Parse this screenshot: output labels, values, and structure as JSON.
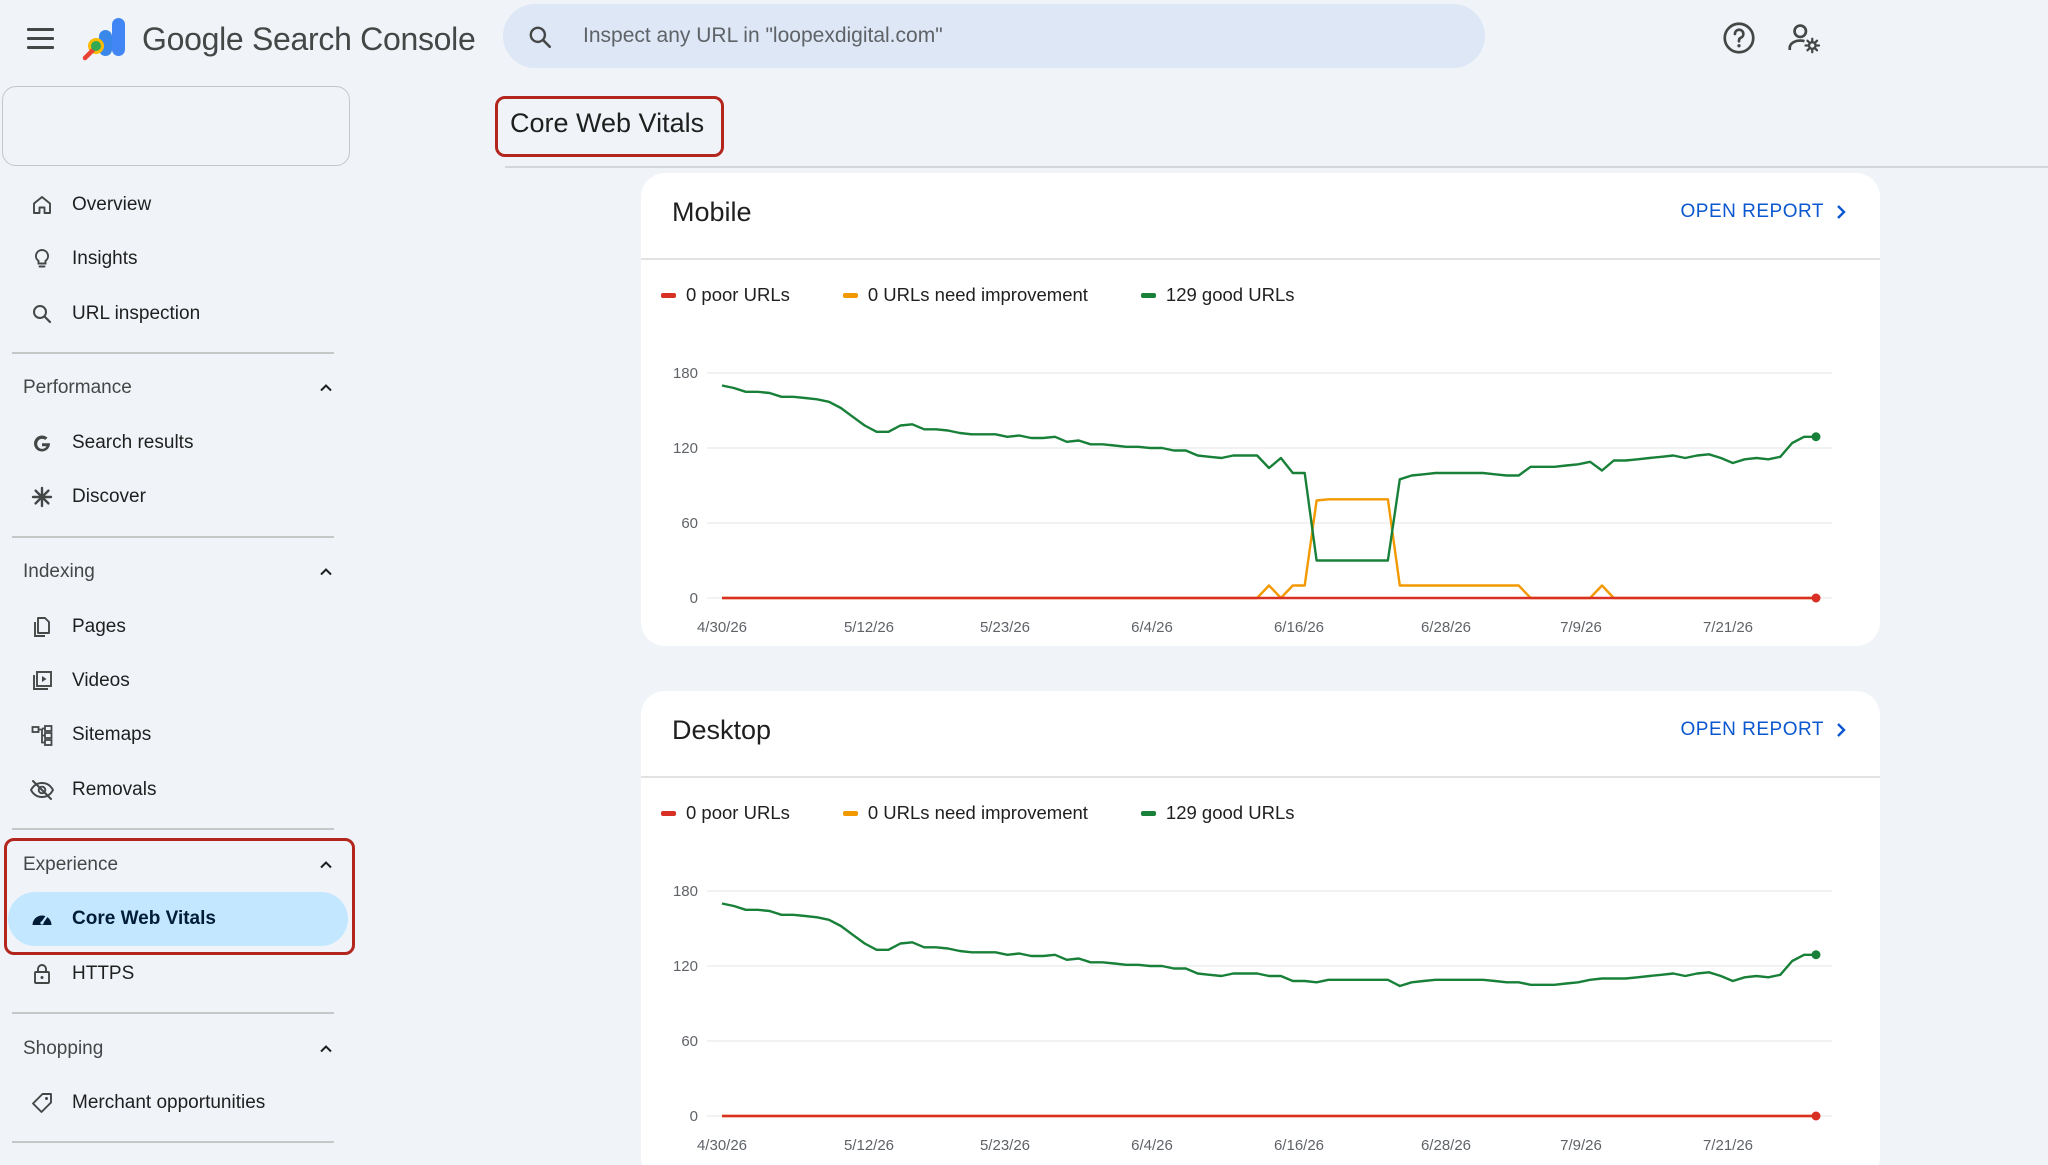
{
  "header": {
    "app_name": "Google Search Console",
    "search_placeholder": "Inspect any URL in \"loopexdigital.com\""
  },
  "sidebar": {
    "top_items": [
      {
        "label": "Overview",
        "icon": "home-icon"
      },
      {
        "label": "Insights",
        "icon": "lightbulb-icon"
      },
      {
        "label": "URL inspection",
        "icon": "search-icon"
      }
    ],
    "sections": [
      {
        "label": "Performance",
        "items": [
          {
            "label": "Search results",
            "icon": "google-g-icon"
          },
          {
            "label": "Discover",
            "icon": "asterisk-icon"
          }
        ]
      },
      {
        "label": "Indexing",
        "items": [
          {
            "label": "Pages",
            "icon": "pages-icon"
          },
          {
            "label": "Videos",
            "icon": "video-icon"
          },
          {
            "label": "Sitemaps",
            "icon": "sitemap-icon"
          },
          {
            "label": "Removals",
            "icon": "eye-off-icon"
          }
        ]
      },
      {
        "label": "Experience",
        "items": [
          {
            "label": "Core Web Vitals",
            "icon": "speedometer-icon",
            "active": true
          },
          {
            "label": "HTTPS",
            "icon": "lock-icon"
          }
        ]
      },
      {
        "label": "Shopping",
        "items": [
          {
            "label": "Merchant opportunities",
            "icon": "tag-icon"
          }
        ]
      }
    ]
  },
  "page": {
    "title": "Core Web Vitals"
  },
  "colors": {
    "poor": "#d93025",
    "needs_improvement": "#f29900",
    "good": "#188038",
    "link": "#0b57d0",
    "active_nav": "#c2e7ff",
    "highlight": "#b3261e"
  },
  "cards": [
    {
      "title": "Mobile",
      "open_report": "OPEN REPORT",
      "legend": {
        "poor": "0 poor URLs",
        "needs": "0 URLs need improvement",
        "good": "129 good URLs"
      }
    },
    {
      "title": "Desktop",
      "open_report": "OPEN REPORT",
      "legend": {
        "poor": "0 poor URLs",
        "needs": "0 URLs need improvement",
        "good": "129 good URLs"
      }
    }
  ],
  "chart_data": [
    {
      "type": "line",
      "ylim": [
        0,
        180
      ],
      "y_ticks": [
        "0",
        "60",
        "120",
        "180"
      ],
      "x_tick_labels": [
        "4/30/26",
        "5/12/26",
        "5/23/26",
        "6/4/26",
        "6/16/26",
        "6/28/26",
        "7/9/26",
        "7/21/26"
      ],
      "x_start": "4/30/26",
      "series": [
        {
          "name": "good",
          "values": [
            170,
            168,
            165,
            165,
            164,
            161,
            161,
            160,
            159,
            157,
            152,
            145,
            138,
            133,
            133,
            138,
            139,
            135,
            135,
            134,
            132,
            131,
            131,
            131,
            129,
            130,
            128,
            128,
            129,
            125,
            126,
            123,
            123,
            122,
            121,
            121,
            120,
            120,
            118,
            118,
            114,
            113,
            112,
            114,
            114,
            114,
            104,
            112,
            100,
            100,
            30,
            30,
            30,
            30,
            30,
            30,
            30,
            95,
            98,
            99,
            100,
            100,
            100,
            100,
            100,
            99,
            98,
            98,
            105,
            105,
            105,
            106,
            107,
            109,
            102,
            110,
            110,
            111,
            112,
            113,
            114,
            112,
            114,
            115,
            112,
            108,
            111,
            112,
            111,
            113,
            124,
            129,
            129
          ]
        },
        {
          "name": "needs improvement",
          "values": [
            0,
            0,
            0,
            0,
            0,
            0,
            0,
            0,
            0,
            0,
            0,
            0,
            0,
            0,
            0,
            0,
            0,
            0,
            0,
            0,
            0,
            0,
            0,
            0,
            0,
            0,
            0,
            0,
            0,
            0,
            0,
            0,
            0,
            0,
            0,
            0,
            0,
            0,
            0,
            0,
            0,
            0,
            0,
            0,
            0,
            0,
            10,
            0,
            10,
            10,
            78,
            79,
            79,
            79,
            79,
            79,
            79,
            10,
            10,
            10,
            10,
            10,
            10,
            10,
            10,
            10,
            10,
            10,
            0,
            0,
            0,
            0,
            0,
            0,
            10,
            0,
            0,
            0,
            0,
            0,
            0,
            0,
            0,
            0,
            0,
            0,
            0,
            0,
            0,
            0,
            0,
            0,
            0
          ]
        },
        {
          "name": "poor",
          "values": [
            0,
            0,
            0,
            0,
            0,
            0,
            0,
            0,
            0,
            0,
            0,
            0,
            0,
            0,
            0,
            0,
            0,
            0,
            0,
            0,
            0,
            0,
            0,
            0,
            0,
            0,
            0,
            0,
            0,
            0,
            0,
            0,
            0,
            0,
            0,
            0,
            0,
            0,
            0,
            0,
            0,
            0,
            0,
            0,
            0,
            0,
            0,
            0,
            0,
            0,
            0,
            0,
            0,
            0,
            0,
            0,
            0,
            0,
            0,
            0,
            0,
            0,
            0,
            0,
            0,
            0,
            0,
            0,
            0,
            0,
            0,
            0,
            0,
            0,
            0,
            0,
            0,
            0,
            0,
            0,
            0,
            0,
            0,
            0,
            0,
            0,
            0,
            0,
            0,
            0,
            0,
            0,
            0
          ]
        }
      ]
    },
    {
      "type": "line",
      "ylim": [
        0,
        180
      ],
      "y_ticks": [
        "0",
        "60",
        "120",
        "180"
      ],
      "x_tick_labels": [
        "4/30/26",
        "5/12/26",
        "5/23/26",
        "6/4/26",
        "6/16/26",
        "6/28/26",
        "7/9/26",
        "7/21/26"
      ],
      "x_start": "4/30/26",
      "series": [
        {
          "name": "good",
          "values": [
            170,
            168,
            165,
            165,
            164,
            161,
            161,
            160,
            159,
            157,
            152,
            145,
            138,
            133,
            133,
            138,
            139,
            135,
            135,
            134,
            132,
            131,
            131,
            131,
            129,
            130,
            128,
            128,
            129,
            125,
            126,
            123,
            123,
            122,
            121,
            121,
            120,
            120,
            118,
            118,
            114,
            113,
            112,
            114,
            114,
            114,
            112,
            112,
            108,
            108,
            107,
            109,
            109,
            109,
            109,
            109,
            109,
            104,
            107,
            108,
            109,
            109,
            109,
            109,
            109,
            108,
            107,
            107,
            105,
            105,
            105,
            106,
            107,
            109,
            110,
            110,
            110,
            111,
            112,
            113,
            114,
            112,
            114,
            115,
            112,
            108,
            111,
            112,
            111,
            113,
            124,
            129,
            129
          ]
        },
        {
          "name": "needs improvement",
          "values": [
            0,
            0,
            0,
            0,
            0,
            0,
            0,
            0,
            0,
            0,
            0,
            0,
            0,
            0,
            0,
            0,
            0,
            0,
            0,
            0,
            0,
            0,
            0,
            0,
            0,
            0,
            0,
            0,
            0,
            0,
            0,
            0,
            0,
            0,
            0,
            0,
            0,
            0,
            0,
            0,
            0,
            0,
            0,
            0,
            0,
            0,
            0,
            0,
            0,
            0,
            0,
            0,
            0,
            0,
            0,
            0,
            0,
            0,
            0,
            0,
            0,
            0,
            0,
            0,
            0,
            0,
            0,
            0,
            0,
            0,
            0,
            0,
            0,
            0,
            0,
            0,
            0,
            0,
            0,
            0,
            0,
            0,
            0,
            0,
            0,
            0,
            0,
            0,
            0,
            0,
            0,
            0,
            0
          ]
        },
        {
          "name": "poor",
          "values": [
            0,
            0,
            0,
            0,
            0,
            0,
            0,
            0,
            0,
            0,
            0,
            0,
            0,
            0,
            0,
            0,
            0,
            0,
            0,
            0,
            0,
            0,
            0,
            0,
            0,
            0,
            0,
            0,
            0,
            0,
            0,
            0,
            0,
            0,
            0,
            0,
            0,
            0,
            0,
            0,
            0,
            0,
            0,
            0,
            0,
            0,
            0,
            0,
            0,
            0,
            0,
            0,
            0,
            0,
            0,
            0,
            0,
            0,
            0,
            0,
            0,
            0,
            0,
            0,
            0,
            0,
            0,
            0,
            0,
            0,
            0,
            0,
            0,
            0,
            0,
            0,
            0,
            0,
            0,
            0,
            0,
            0,
            0,
            0,
            0,
            0,
            0,
            0,
            0,
            0,
            0,
            0,
            0
          ]
        }
      ]
    }
  ]
}
